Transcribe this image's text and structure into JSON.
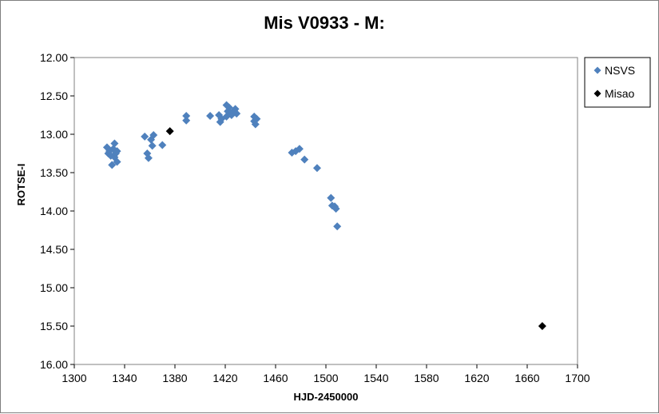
{
  "chart_data": {
    "type": "scatter",
    "title": "Mis V0933 - M:",
    "xlabel": "HJD-2450000",
    "ylabel": "ROTSE-I",
    "xlim": [
      1300,
      1700
    ],
    "ylim": [
      12.0,
      16.0
    ],
    "y_inverted": true,
    "x_ticks": [
      1300,
      1340,
      1380,
      1420,
      1460,
      1500,
      1540,
      1580,
      1620,
      1660,
      1700
    ],
    "y_ticks": [
      "12.00",
      "12.50",
      "13.00",
      "13.50",
      "14.00",
      "14.50",
      "15.00",
      "15.50",
      "16.00"
    ],
    "grid": false,
    "legend_position": "top-right",
    "series": [
      {
        "name": "NSVS",
        "color": "#4f81bd",
        "marker": "diamond",
        "points": [
          [
            1326,
            13.17
          ],
          [
            1327,
            13.25
          ],
          [
            1328,
            13.22
          ],
          [
            1329,
            13.28
          ],
          [
            1330,
            13.4
          ],
          [
            1331,
            13.19
          ],
          [
            1332,
            13.12
          ],
          [
            1332,
            13.3
          ],
          [
            1333,
            13.25
          ],
          [
            1334,
            13.36
          ],
          [
            1334,
            13.22
          ],
          [
            1356,
            13.03
          ],
          [
            1358,
            13.25
          ],
          [
            1359,
            13.31
          ],
          [
            1361,
            13.07
          ],
          [
            1362,
            13.15
          ],
          [
            1363,
            13.01
          ],
          [
            1370,
            13.14
          ],
          [
            1389,
            12.76
          ],
          [
            1389,
            12.82
          ],
          [
            1408,
            12.76
          ],
          [
            1415,
            12.75
          ],
          [
            1416,
            12.84
          ],
          [
            1417,
            12.8
          ],
          [
            1421,
            12.62
          ],
          [
            1421,
            12.77
          ],
          [
            1422,
            12.7
          ],
          [
            1423,
            12.65
          ],
          [
            1424,
            12.72
          ],
          [
            1425,
            12.75
          ],
          [
            1427,
            12.69
          ],
          [
            1428,
            12.67
          ],
          [
            1429,
            12.73
          ],
          [
            1443,
            12.77
          ],
          [
            1443,
            12.83
          ],
          [
            1444,
            12.87
          ],
          [
            1445,
            12.8
          ],
          [
            1473,
            13.24
          ],
          [
            1476,
            13.22
          ],
          [
            1479,
            13.19
          ],
          [
            1483,
            13.33
          ],
          [
            1493,
            13.44
          ],
          [
            1504,
            13.83
          ],
          [
            1505,
            13.93
          ],
          [
            1507,
            13.94
          ],
          [
            1508,
            13.97
          ],
          [
            1509,
            14.2
          ]
        ]
      },
      {
        "name": "Misao",
        "color": "#000000",
        "marker": "diamond",
        "points": [
          [
            1376,
            12.96
          ],
          [
            1672,
            15.5
          ]
        ]
      }
    ]
  }
}
